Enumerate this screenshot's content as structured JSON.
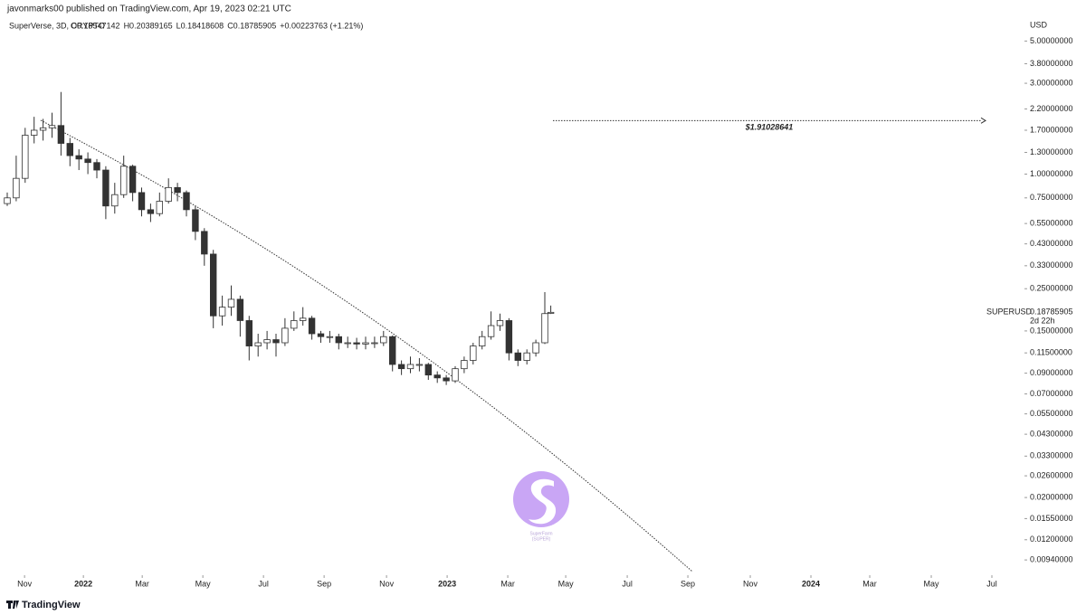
{
  "header": "javonmarks00 published on TradingView.com, Apr 19, 2023 02:21 UTC",
  "footer": "TradingView",
  "watermark": {
    "name": "SuperFarm",
    "ticker": "(SUPER)"
  },
  "chart_data": {
    "type": "candlestick",
    "title": "SuperVerse, 3D, CRYPTO",
    "legend_ohlc": [
      "O0.18547142",
      "H0.20389165",
      "L0.18418608",
      "C0.18785905"
    ],
    "change": "+0.00223763 (+1.21%)",
    "symbol": "SUPERUSD",
    "currency": "USD",
    "last_price": 0.18785905,
    "countdown": "2d 22h",
    "log_scale": true,
    "up_color": "#ffffff",
    "down_color": "#333333",
    "x": [
      0,
      3,
      6,
      9,
      12,
      15,
      18,
      21,
      24,
      27,
      30,
      33,
      36,
      39,
      42,
      45,
      48,
      51,
      54,
      57,
      60,
      63,
      66,
      69,
      72,
      75,
      78,
      81,
      84,
      87,
      90,
      93,
      96,
      99,
      102,
      105,
      108,
      111,
      114,
      117,
      120,
      123,
      126,
      129,
      132,
      135,
      138,
      141,
      144,
      147,
      150,
      153,
      156,
      159,
      162,
      165,
      168,
      171,
      174,
      177,
      180,
      182
    ],
    "open": [
      0.7,
      0.75,
      0.95,
      1.6,
      1.7,
      1.75,
      1.8,
      1.45,
      1.25,
      1.2,
      1.15,
      1.05,
      0.68,
      0.78,
      1.1,
      0.8,
      0.65,
      0.62,
      0.72,
      0.85,
      0.8,
      0.65,
      0.5,
      0.38,
      0.18,
      0.2,
      0.22,
      0.17,
      0.125,
      0.13,
      0.135,
      0.13,
      0.155,
      0.17,
      0.175,
      0.145,
      0.14,
      0.14,
      0.13,
      0.13,
      0.128,
      0.13,
      0.13,
      0.14,
      0.1,
      0.095,
      0.1,
      0.1,
      0.088,
      0.085,
      0.082,
      0.095,
      0.105,
      0.125,
      0.14,
      0.16,
      0.17,
      0.115,
      0.105,
      0.115,
      0.13,
      0.18547142
    ],
    "high": [
      0.8,
      1.25,
      1.75,
      2.0,
      1.95,
      2.1,
      2.7,
      1.55,
      1.35,
      1.3,
      1.2,
      1.1,
      0.9,
      1.25,
      1.12,
      0.85,
      0.7,
      0.8,
      0.95,
      0.9,
      0.82,
      0.68,
      0.52,
      0.4,
      0.23,
      0.26,
      0.23,
      0.18,
      0.145,
      0.15,
      0.145,
      0.175,
      0.19,
      0.2,
      0.18,
      0.15,
      0.15,
      0.145,
      0.14,
      0.138,
      0.14,
      0.14,
      0.15,
      0.142,
      0.105,
      0.11,
      0.108,
      0.102,
      0.092,
      0.088,
      0.098,
      0.11,
      0.13,
      0.15,
      0.19,
      0.185,
      0.175,
      0.12,
      0.12,
      0.135,
      0.24,
      0.20389165
    ],
    "low": [
      0.68,
      0.72,
      0.9,
      1.45,
      1.5,
      1.55,
      1.25,
      1.1,
      1.05,
      1.0,
      0.95,
      0.58,
      0.62,
      0.75,
      0.72,
      0.6,
      0.56,
      0.6,
      0.7,
      0.72,
      0.6,
      0.45,
      0.33,
      0.155,
      0.16,
      0.18,
      0.14,
      0.105,
      0.11,
      0.12,
      0.11,
      0.125,
      0.15,
      0.16,
      0.135,
      0.13,
      0.13,
      0.12,
      0.122,
      0.12,
      0.12,
      0.122,
      0.125,
      0.092,
      0.088,
      0.09,
      0.092,
      0.083,
      0.08,
      0.078,
      0.08,
      0.09,
      0.1,
      0.12,
      0.135,
      0.15,
      0.105,
      0.098,
      0.1,
      0.11,
      0.128,
      0.18418608
    ],
    "close": [
      0.75,
      0.95,
      1.6,
      1.7,
      1.75,
      1.8,
      1.45,
      1.25,
      1.2,
      1.15,
      1.05,
      0.68,
      0.78,
      1.1,
      0.8,
      0.65,
      0.62,
      0.72,
      0.85,
      0.8,
      0.65,
      0.5,
      0.38,
      0.18,
      0.2,
      0.22,
      0.17,
      0.125,
      0.13,
      0.135,
      0.13,
      0.155,
      0.17,
      0.175,
      0.145,
      0.14,
      0.14,
      0.13,
      0.13,
      0.128,
      0.13,
      0.13,
      0.14,
      0.1,
      0.095,
      0.1,
      0.1,
      0.088,
      0.085,
      0.082,
      0.095,
      0.105,
      0.125,
      0.14,
      0.16,
      0.17,
      0.115,
      0.105,
      0.115,
      0.13,
      0.185,
      0.18785905
    ],
    "xlim": [
      0,
      340
    ],
    "xticks": [
      {
        "value": 5.8,
        "label": "Nov"
      },
      {
        "value": 25.5,
        "label": "2022"
      },
      {
        "value": 45.2,
        "label": "Mar"
      },
      {
        "value": 65.5,
        "label": "May"
      },
      {
        "value": 85.8,
        "label": "Jul"
      },
      {
        "value": 106.1,
        "label": "Sep"
      },
      {
        "value": 127,
        "label": "Nov"
      },
      {
        "value": 147.3,
        "label": "2023"
      },
      {
        "value": 167.6,
        "label": "Mar"
      },
      {
        "value": 187,
        "label": "May"
      },
      {
        "value": 207.6,
        "label": "Jul"
      },
      {
        "value": 227.9,
        "label": "Sep"
      },
      {
        "value": 248.8,
        "label": "Nov"
      },
      {
        "value": 269.1,
        "label": "2024"
      },
      {
        "value": 288.8,
        "label": "Mar"
      },
      {
        "value": 309.4,
        "label": "May"
      },
      {
        "value": 329.7,
        "label": "Jul"
      }
    ],
    "ylim": [
      0.0079,
      6.6
    ],
    "yticks": [
      {
        "value": 5,
        "label": "5.00000000"
      },
      {
        "value": 3.8,
        "label": "3.80000000"
      },
      {
        "value": 3,
        "label": "3.00000000"
      },
      {
        "value": 2.2,
        "label": "2.20000000"
      },
      {
        "value": 1.7,
        "label": "1.70000000"
      },
      {
        "value": 1.3,
        "label": "1.30000000"
      },
      {
        "value": 1,
        "label": "1.00000000"
      },
      {
        "value": 0.75,
        "label": "0.75000000"
      },
      {
        "value": 0.55,
        "label": "0.55000000"
      },
      {
        "value": 0.43,
        "label": "0.43000000"
      },
      {
        "value": 0.33,
        "label": "0.33000000"
      },
      {
        "value": 0.25,
        "label": "0.25000000"
      },
      {
        "value": 0.15,
        "label": "0.15000000"
      },
      {
        "value": 0.115,
        "label": "0.11500000"
      },
      {
        "value": 0.09,
        "label": "0.09000000"
      },
      {
        "value": 0.07,
        "label": "0.07000000"
      },
      {
        "value": 0.055,
        "label": "0.05500000"
      },
      {
        "value": 0.043,
        "label": "0.04300000"
      },
      {
        "value": 0.033,
        "label": "0.03300000"
      },
      {
        "value": 0.026,
        "label": "0.02600000"
      },
      {
        "value": 0.02,
        "label": "0.02000000"
      },
      {
        "value": 0.0155,
        "label": "0.01550000"
      },
      {
        "value": 0.012,
        "label": "0.01200000"
      },
      {
        "value": 0.0094,
        "label": "0.00940000"
      }
    ],
    "target": {
      "value": 1.91028641,
      "label": "$1.91028641"
    }
  }
}
